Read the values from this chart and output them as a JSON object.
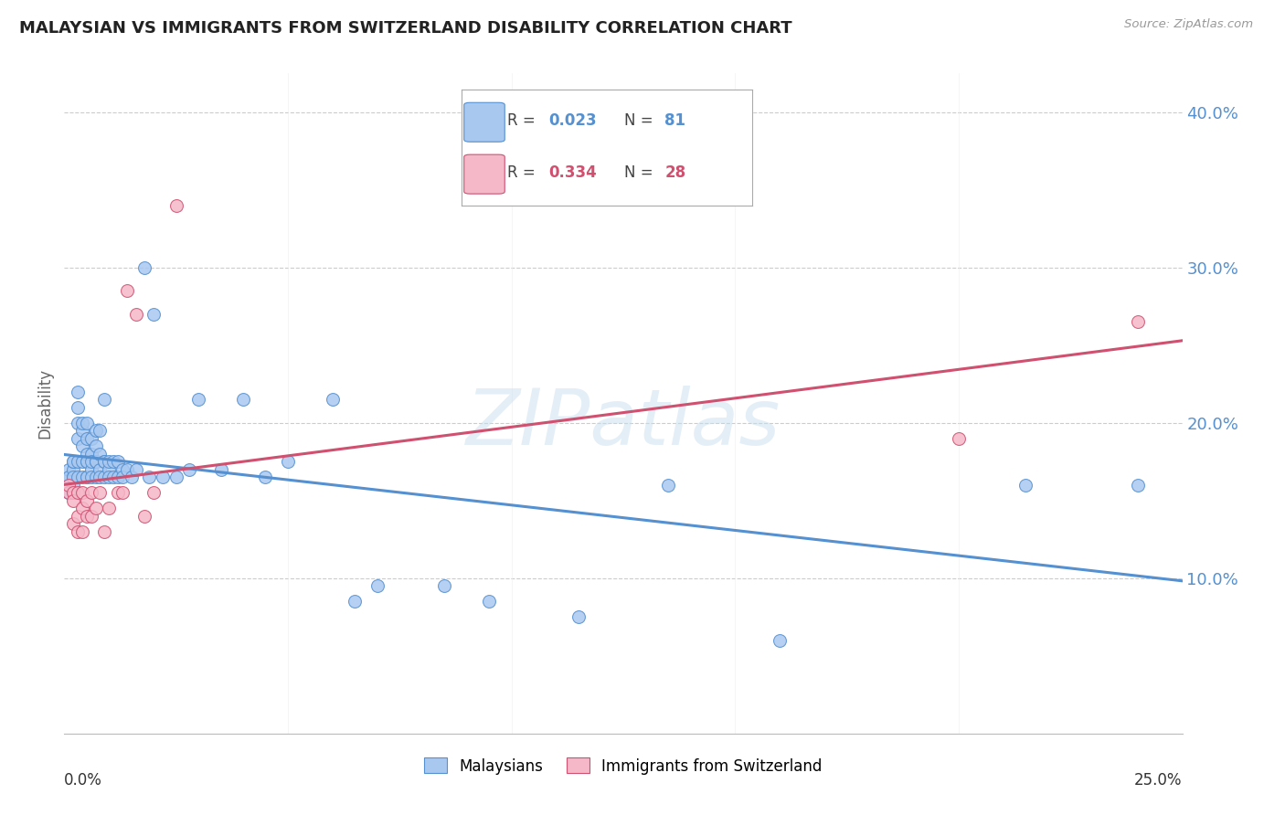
{
  "title": "MALAYSIAN VS IMMIGRANTS FROM SWITZERLAND DISABILITY CORRELATION CHART",
  "source": "Source: ZipAtlas.com",
  "ylabel": "Disability",
  "xlim": [
    0.0,
    0.25
  ],
  "ylim": [
    0.0,
    0.425
  ],
  "ytick_values": [
    0.1,
    0.2,
    0.3,
    0.4
  ],
  "ytick_labels": [
    "10.0%",
    "20.0%",
    "30.0%",
    "40.0%"
  ],
  "watermark": "ZIPatlas",
  "legend1_r": "0.023",
  "legend1_n": "81",
  "legend2_r": "0.334",
  "legend2_n": "28",
  "color_blue": "#a8c8f0",
  "color_pink": "#f5b8c8",
  "line_color_blue": "#5590d0",
  "line_color_pink": "#d05070",
  "malaysians_x": [
    0.001,
    0.001,
    0.001,
    0.001,
    0.001,
    0.002,
    0.002,
    0.002,
    0.002,
    0.002,
    0.002,
    0.002,
    0.003,
    0.003,
    0.003,
    0.003,
    0.003,
    0.003,
    0.004,
    0.004,
    0.004,
    0.004,
    0.004,
    0.005,
    0.005,
    0.005,
    0.005,
    0.005,
    0.005,
    0.005,
    0.006,
    0.006,
    0.006,
    0.006,
    0.006,
    0.007,
    0.007,
    0.007,
    0.007,
    0.007,
    0.008,
    0.008,
    0.008,
    0.008,
    0.009,
    0.009,
    0.009,
    0.009,
    0.01,
    0.01,
    0.01,
    0.011,
    0.011,
    0.012,
    0.012,
    0.013,
    0.013,
    0.014,
    0.015,
    0.016,
    0.018,
    0.019,
    0.02,
    0.022,
    0.025,
    0.028,
    0.03,
    0.035,
    0.04,
    0.045,
    0.05,
    0.06,
    0.065,
    0.07,
    0.085,
    0.095,
    0.115,
    0.135,
    0.16,
    0.215,
    0.24
  ],
  "malaysians_y": [
    0.155,
    0.165,
    0.17,
    0.155,
    0.165,
    0.16,
    0.165,
    0.155,
    0.17,
    0.175,
    0.165,
    0.175,
    0.165,
    0.175,
    0.19,
    0.2,
    0.21,
    0.22,
    0.175,
    0.185,
    0.195,
    0.165,
    0.2,
    0.165,
    0.175,
    0.18,
    0.19,
    0.165,
    0.175,
    0.2,
    0.17,
    0.18,
    0.19,
    0.165,
    0.175,
    0.165,
    0.175,
    0.185,
    0.195,
    0.175,
    0.17,
    0.18,
    0.165,
    0.195,
    0.175,
    0.165,
    0.175,
    0.215,
    0.17,
    0.175,
    0.165,
    0.165,
    0.175,
    0.175,
    0.165,
    0.17,
    0.165,
    0.17,
    0.165,
    0.17,
    0.3,
    0.165,
    0.27,
    0.165,
    0.165,
    0.17,
    0.215,
    0.17,
    0.215,
    0.165,
    0.175,
    0.215,
    0.085,
    0.095,
    0.095,
    0.085,
    0.075,
    0.16,
    0.06,
    0.16,
    0.16
  ],
  "swiss_x": [
    0.001,
    0.001,
    0.002,
    0.002,
    0.002,
    0.003,
    0.003,
    0.003,
    0.004,
    0.004,
    0.004,
    0.005,
    0.005,
    0.006,
    0.006,
    0.007,
    0.008,
    0.009,
    0.01,
    0.012,
    0.013,
    0.014,
    0.016,
    0.018,
    0.02,
    0.025,
    0.2,
    0.24
  ],
  "swiss_y": [
    0.155,
    0.16,
    0.135,
    0.155,
    0.15,
    0.155,
    0.14,
    0.13,
    0.155,
    0.145,
    0.13,
    0.15,
    0.14,
    0.14,
    0.155,
    0.145,
    0.155,
    0.13,
    0.145,
    0.155,
    0.155,
    0.285,
    0.27,
    0.14,
    0.155,
    0.34,
    0.19,
    0.265
  ]
}
